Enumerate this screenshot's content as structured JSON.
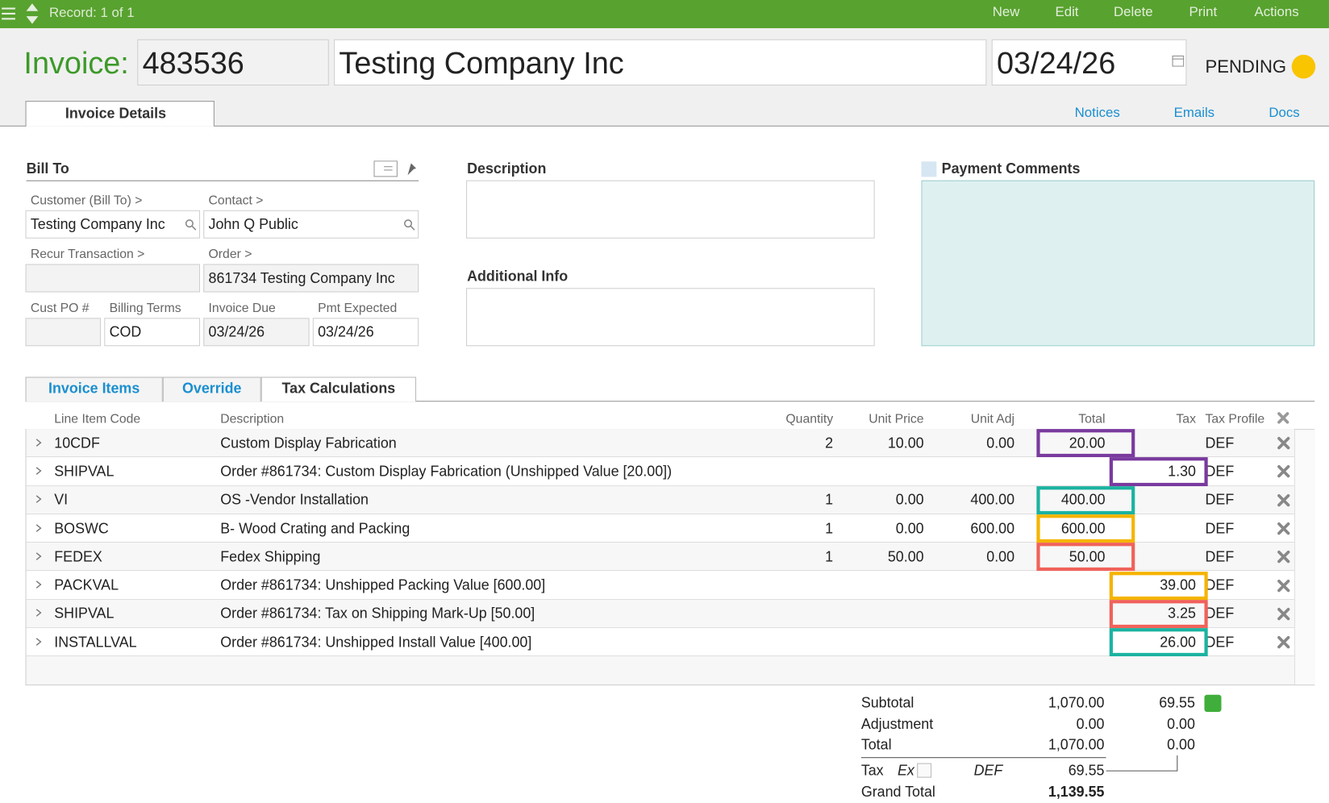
{
  "toolbar": {
    "record": "Record: 1 of 1",
    "actions": [
      "New",
      "Edit",
      "Delete",
      "Print",
      "Actions"
    ]
  },
  "header": {
    "label": "Invoice:",
    "number": "483536",
    "company": "Testing Company Inc",
    "date": "03/24/26",
    "status": "PENDING"
  },
  "tabs": [
    "Invoice Details"
  ],
  "links": [
    "Notices",
    "Emails",
    "Docs"
  ],
  "bill_to": {
    "title": "Bill To",
    "fields": [
      {
        "label": "Customer (Bill To) >",
        "value": "Testing Company Inc"
      },
      {
        "label": "Contact >",
        "value": "John Q Public"
      },
      {
        "label": "Recur Transaction >"
      },
      {
        "label": "Order >",
        "value": "861734 Testing Company Inc"
      },
      {
        "label": "Cust PO #"
      },
      {
        "label": "Billing Terms",
        "value": "COD"
      },
      {
        "label": "Invoice Due",
        "value": "03/24/26"
      },
      {
        "label": "Pmt Expected",
        "value": "03/24/26"
      }
    ]
  },
  "description": {
    "title": "Description"
  },
  "additional_info": {
    "title": "Additional Info"
  },
  "payment_comments": {
    "title": "Payment Comments"
  },
  "item_tabs": [
    "Invoice Items",
    "Override",
    "Tax Calculations"
  ],
  "table": {
    "columns": [
      "Line Item Code",
      "Description",
      "Quantity",
      "Unit Price",
      "Unit Adj",
      "Total",
      "Tax",
      "Tax Profile"
    ],
    "rows": [
      {
        "code": "10CDF",
        "description": "Custom Display Fabrication",
        "quantity": "2",
        "unit_price": "10.00",
        "unit_adj": "0.00",
        "total": "20.00",
        "profile": "DEF",
        "highlight": "#7a3a9e"
      },
      {
        "code": "SHIPVAL",
        "description": "Order #861734: Custom Display Fabrication (Unshipped Value [20.00])",
        "tax": "1.30",
        "profile": "DEF",
        "highlight": "#7a3a9e"
      },
      {
        "code": "VI",
        "description": "OS -Vendor Installation",
        "quantity": "1",
        "unit_price": "0.00",
        "unit_adj": "400.00",
        "total": "400.00",
        "profile": "DEF",
        "highlight": "#1bb3a0"
      },
      {
        "code": "BOSWC",
        "description": "B- Wood Crating and Packing",
        "quantity": "1",
        "unit_price": "0.00",
        "unit_adj": "600.00",
        "total": "600.00",
        "profile": "DEF",
        "highlight": "#f5b400"
      },
      {
        "code": "FEDEX",
        "description": "Fedex Shipping",
        "quantity": "1",
        "unit_price": "50.00",
        "unit_adj": "0.00",
        "total": "50.00",
        "profile": "DEF",
        "highlight": "#f0625a"
      },
      {
        "code": "PACKVAL",
        "description": "Order #861734: Unshipped Packing Value [600.00]",
        "tax": "39.00",
        "profile": "DEF",
        "highlight": "#f5b400"
      },
      {
        "code": "SHIPVAL",
        "description": "Order #861734: Tax on Shipping Mark-Up [50.00]",
        "tax": "3.25",
        "profile": "DEF",
        "highlight": "#f0625a"
      },
      {
        "code": "INSTALLVAL",
        "description": "Order #861734: Unshipped Install Value [400.00]",
        "tax": "26.00",
        "profile": "DEF",
        "highlight": "#1bb3a0"
      }
    ]
  },
  "summary": {
    "rows": [
      {
        "label": "Subtotal",
        "amount": "1,070.00",
        "tax": "69.55"
      },
      {
        "label": "Adjustment",
        "amount": "0.00",
        "tax": "0.00"
      },
      {
        "label": "Total",
        "amount": "1,070.00",
        "tax": "0.00"
      }
    ],
    "tax_line": {
      "label": "Tax",
      "exempt": "Ex",
      "profile": "DEF",
      "amount": "69.55"
    },
    "grand_total": {
      "label": "Grand Total",
      "amount": "1,139.55"
    }
  }
}
